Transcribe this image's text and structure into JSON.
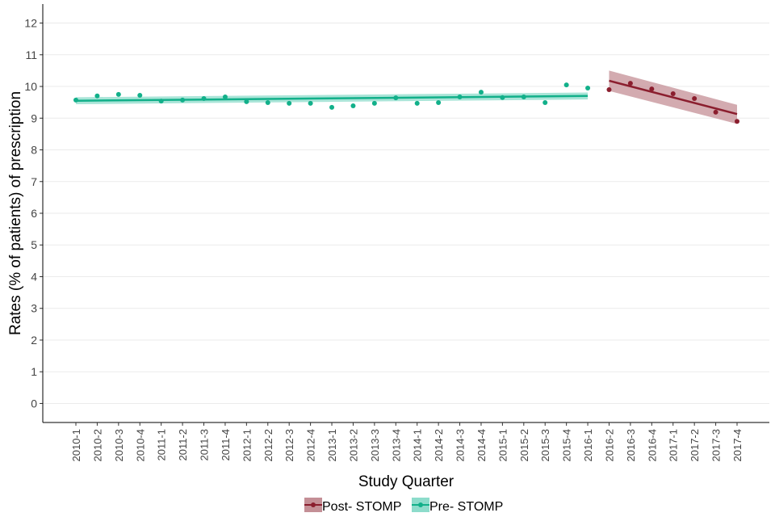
{
  "chart_data": {
    "type": "scatter",
    "title": "",
    "xlabel": "Study Quarter",
    "ylabel": "Rates (% of patients) of prescription",
    "ylim": [
      -0.6,
      12.6
    ],
    "yticks": [
      0,
      1,
      2,
      3,
      4,
      5,
      6,
      7,
      8,
      9,
      10,
      11,
      12
    ],
    "grid": "horizontal",
    "legend_position": "bottom",
    "categories": [
      "2010-1",
      "2010-2",
      "2010-3",
      "2010-4",
      "2011-1",
      "2011-2",
      "2011-3",
      "2011-4",
      "2012-1",
      "2012-2",
      "2012-3",
      "2012-4",
      "2013-1",
      "2013-2",
      "2013-3",
      "2013-4",
      "2014-1",
      "2014-2",
      "2014-3",
      "2014-4",
      "2015-1",
      "2015-2",
      "2015-3",
      "2015-4",
      "2016-1",
      "2016-2",
      "2016-3",
      "2016-4",
      "2017-1",
      "2017-2",
      "2017-3",
      "2017-4"
    ],
    "series": [
      {
        "name": "Post- STOMP",
        "color": "#8b1e2e",
        "band_color": "#c48f96",
        "start_index": 25,
        "values": [
          9.9,
          10.1,
          9.92,
          9.77,
          9.62,
          9.19,
          8.9
        ],
        "fit": [
          10.18,
          9.13
        ],
        "ci_upper": [
          10.5,
          9.42
        ],
        "ci_lower": [
          9.86,
          8.82
        ]
      },
      {
        "name": "Pre- STOMP",
        "color": "#12b08a",
        "band_color": "#8ddccb",
        "start_index": 0,
        "values": [
          9.57,
          9.7,
          9.75,
          9.72,
          9.54,
          9.57,
          9.62,
          9.67,
          9.52,
          9.49,
          9.47,
          9.47,
          9.34,
          9.39,
          9.47,
          9.64,
          9.47,
          9.49,
          9.67,
          9.82,
          9.65,
          9.67,
          9.49,
          10.05,
          9.95
        ],
        "fit": [
          9.55,
          9.7
        ],
        "ci_upper": [
          9.66,
          9.81
        ],
        "ci_lower": [
          9.44,
          9.59
        ]
      }
    ]
  }
}
